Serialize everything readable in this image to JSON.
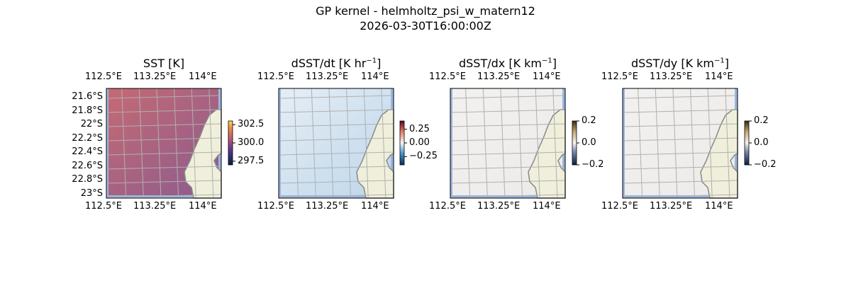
{
  "title": "GP kernel - helmholtz_psi_w_matern12",
  "subtitle": "2026-03-30T16:00:00Z",
  "chart_data": {
    "type": "heatmap",
    "lon_ticks": [
      "112.5°E",
      "113.25°E",
      "114°E"
    ],
    "lat_ticks": [
      "21.6°S",
      "21.8°S",
      "22°S",
      "22.2°S",
      "22.4°S",
      "22.6°S",
      "22.8°S",
      "23°S"
    ],
    "panels": [
      {
        "title": "SST [K]",
        "title_sup": "",
        "title_end": "",
        "colormap": "thermal",
        "clim": [
          297,
          303
        ],
        "cbar_ticks": [
          "302.5",
          "300.0",
          "297.5"
        ],
        "cbar_values": [
          302.5,
          300.0,
          297.5
        ],
        "show_lat_labels": true
      },
      {
        "title": "dSST/dt [K hr",
        "title_sup": "−1",
        "title_end": "]",
        "colormap": "RdBu_r",
        "clim": [
          -0.4,
          0.4
        ],
        "cbar_ticks": [
          "0.25",
          "0.00",
          "−0.25"
        ],
        "cbar_values": [
          0.25,
          0.0,
          -0.25
        ],
        "show_lat_labels": false
      },
      {
        "title": "dSST/dx [K km",
        "title_sup": "−1",
        "title_end": "]",
        "colormap": "diverging-brown",
        "clim": [
          -0.2,
          0.2
        ],
        "cbar_ticks": [
          "0.2",
          "0.0",
          "−0.2"
        ],
        "cbar_values": [
          0.2,
          0.0,
          -0.2
        ],
        "show_lat_labels": false
      },
      {
        "title": "dSST/dy [K km",
        "title_sup": "−1",
        "title_end": "]",
        "colormap": "diverging-brown",
        "clim": [
          -0.2,
          0.2
        ],
        "cbar_ticks": [
          "0.2",
          "0.0",
          "−0.2"
        ],
        "cbar_values": [
          0.2,
          0.0,
          -0.2
        ],
        "show_lat_labels": false
      }
    ],
    "colors": {
      "land": "#efefdb",
      "missing": "#9ab6e0",
      "grid": "#b0b0b0",
      "coast": "#888888"
    }
  }
}
